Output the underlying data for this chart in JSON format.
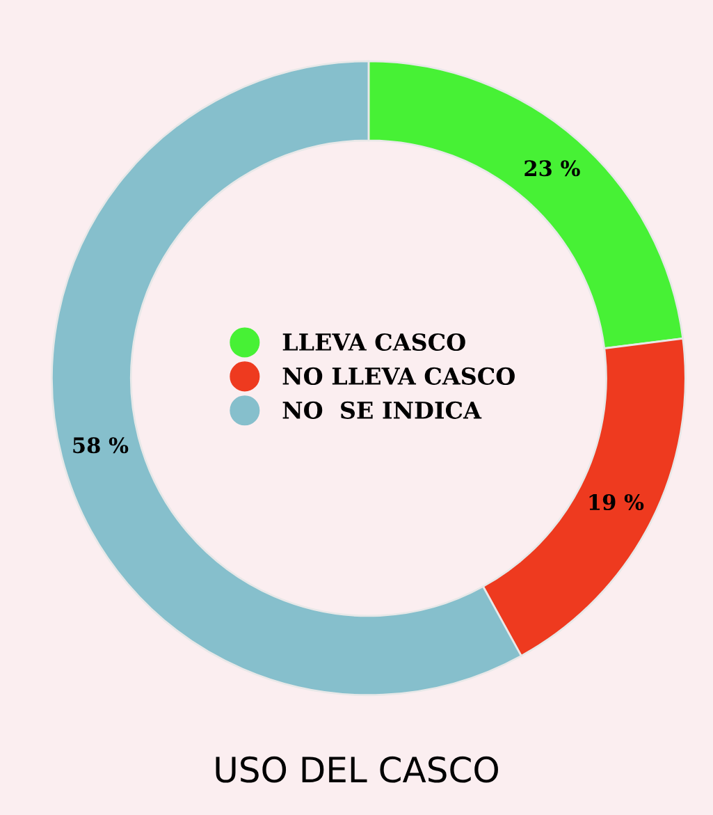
{
  "chart_data": {
    "type": "donut",
    "title": "USO DEL CASCO",
    "categories": [
      "LLEVA CASCO",
      "NO LLEVA CASCO",
      "NO  SE INDICA"
    ],
    "values": [
      23,
      19,
      58
    ],
    "colors": [
      "#47f135",
      "#ee3a1f",
      "#86bfcc"
    ],
    "value_labels": [
      "23 %",
      "19 %",
      "58 %"
    ],
    "legend": "center"
  }
}
